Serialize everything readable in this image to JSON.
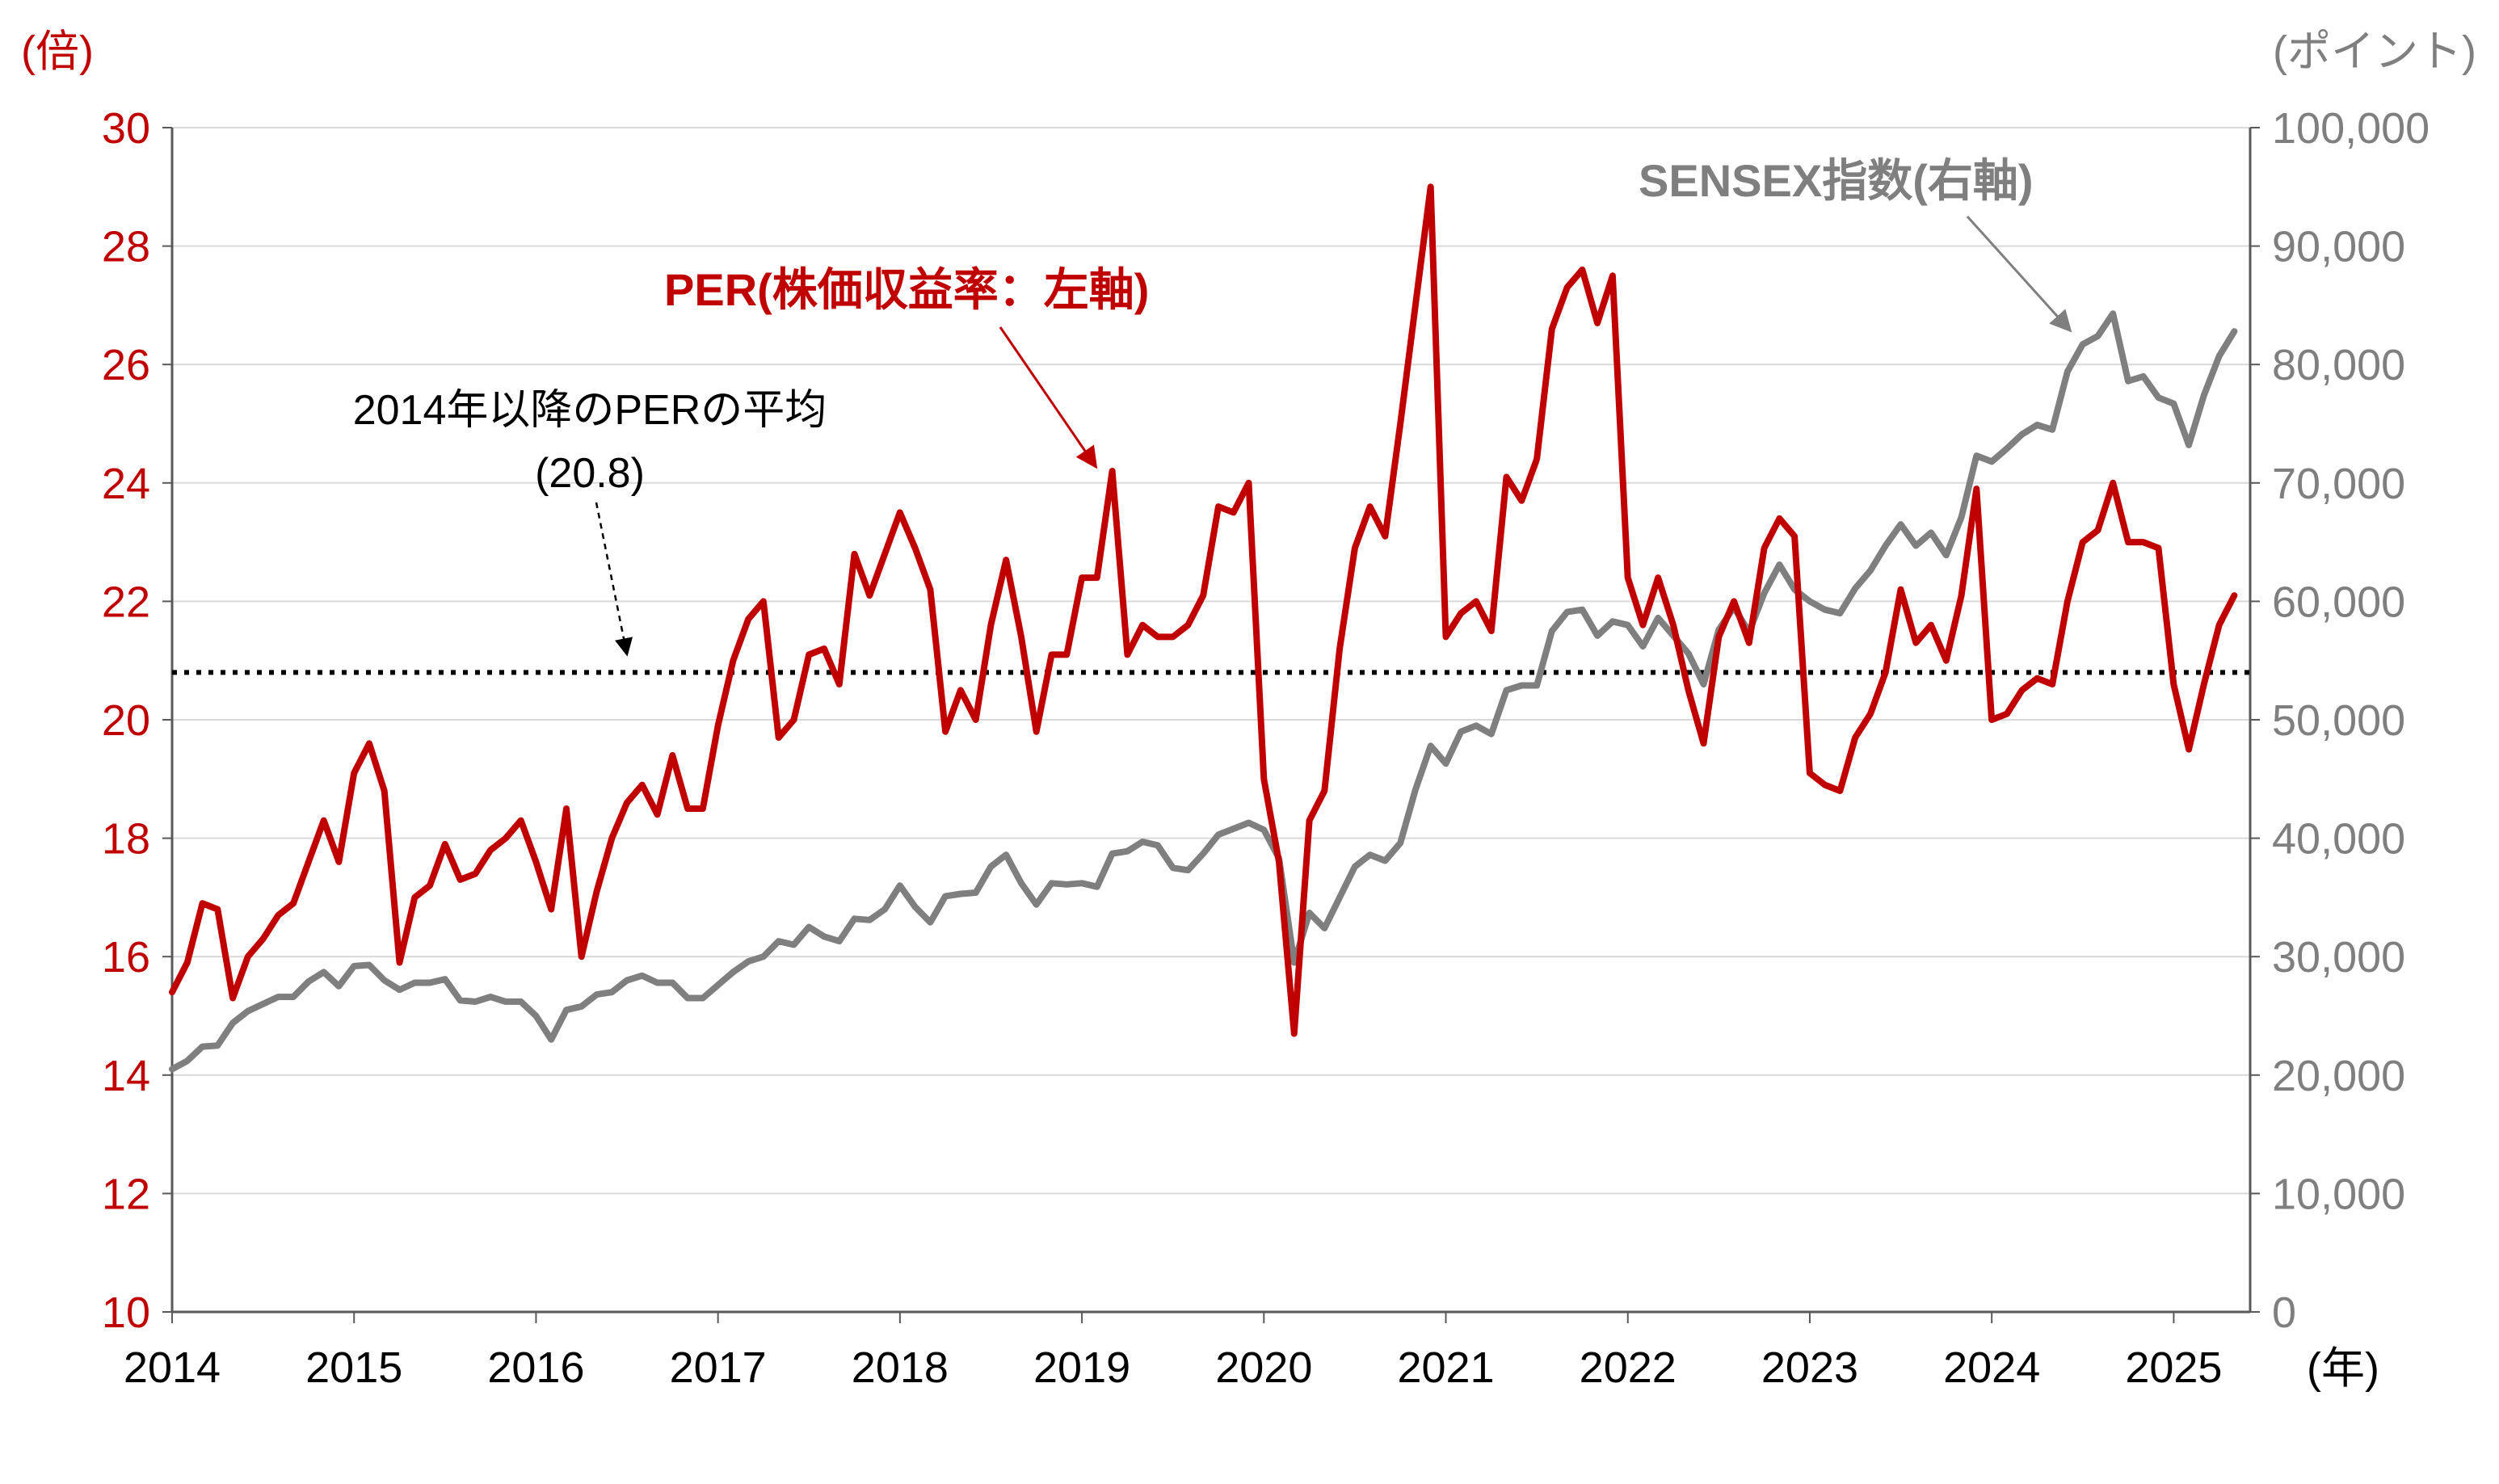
{
  "chart_data": {
    "type": "line",
    "title": "",
    "xlabel": "(年)",
    "ylabel_left": "(倍)",
    "ylabel_right": "(ポイント)",
    "ylim_left": [
      10,
      30
    ],
    "ylim_right": [
      0,
      100000
    ],
    "yticks_left": [
      "10",
      "12",
      "14",
      "16",
      "18",
      "20",
      "22",
      "24",
      "26",
      "28",
      "30"
    ],
    "yticks_right": [
      "0",
      "10,000",
      "20,000",
      "30,000",
      "40,000",
      "50,000",
      "60,000",
      "70,000",
      "80,000",
      "90,000",
      "100,000"
    ],
    "xticks": [
      "2014",
      "2015",
      "2016",
      "2017",
      "2018",
      "2019",
      "2020",
      "2021",
      "2022",
      "2023",
      "2024",
      "2025"
    ],
    "x_start": 2014.0,
    "x_end": 2025.42,
    "grid": "horizontal",
    "colors": {
      "per": "#c00000",
      "sensex": "#7f7f7f",
      "average": "#000000",
      "grid": "#d9d9d9"
    },
    "series": [
      {
        "name": "PER(株価収益率：左軸)",
        "axis": "left",
        "start": 2014.0,
        "step": 0.08333,
        "values": [
          15.4,
          15.9,
          16.9,
          16.8,
          15.3,
          16.0,
          16.3,
          16.7,
          16.9,
          17.6,
          18.3,
          17.6,
          19.1,
          19.6,
          18.8,
          15.9,
          17.0,
          17.2,
          17.9,
          17.3,
          17.4,
          17.8,
          18.0,
          18.3,
          17.6,
          16.8,
          18.5,
          16.0,
          17.1,
          18.0,
          18.6,
          18.9,
          18.4,
          19.4,
          18.5,
          18.5,
          19.9,
          21.0,
          21.7,
          22.0,
          19.7,
          20.0,
          21.1,
          21.2,
          20.6,
          22.8,
          22.1,
          22.8,
          23.5,
          22.9,
          22.2,
          19.8,
          20.5,
          20.0,
          21.6,
          22.7,
          21.4,
          19.8,
          21.1,
          21.1,
          22.4,
          22.4,
          24.2,
          21.1,
          21.6,
          21.4,
          21.4,
          21.6,
          22.1,
          23.6,
          23.5,
          24.0,
          19.0,
          17.6,
          14.7,
          18.3,
          18.8,
          21.2,
          22.9,
          23.6,
          23.1,
          25.0,
          27.0,
          29.0,
          21.4,
          21.8,
          22.0,
          21.5,
          24.1,
          23.7,
          24.4,
          26.6,
          27.3,
          27.6,
          26.7,
          27.5,
          22.4,
          21.6,
          22.4,
          21.6,
          20.5,
          19.6,
          21.4,
          22.0,
          21.3,
          22.9,
          23.4,
          23.1,
          19.1,
          18.9,
          18.8,
          19.7,
          20.1,
          20.8,
          22.2,
          21.3,
          21.6,
          21.0,
          22.1,
          23.9,
          20.0,
          20.1,
          20.5,
          20.7,
          20.6,
          22.0,
          23.0,
          23.2,
          24.0,
          23.0,
          23.0,
          22.9,
          20.6,
          19.5,
          20.6,
          21.6,
          22.1
        ]
      },
      {
        "name": "SENSEX指数(右軸)",
        "axis": "right",
        "start": 2014.0,
        "step": 0.08333,
        "values": [
          20500,
          21200,
          22400,
          22500,
          24400,
          25400,
          26000,
          26600,
          26600,
          27900,
          28700,
          27500,
          29200,
          29300,
          28000,
          27200,
          27800,
          27800,
          28100,
          26300,
          26200,
          26600,
          26200,
          26200,
          25000,
          23000,
          25500,
          25800,
          26800,
          27000,
          28000,
          28400,
          27800,
          27800,
          26500,
          26500,
          27600,
          28700,
          29600,
          30000,
          31300,
          31000,
          32500,
          31700,
          31300,
          33200,
          33100,
          34000,
          36000,
          34200,
          32900,
          35100,
          35300,
          35400,
          37600,
          38600,
          36200,
          34400,
          36200,
          36100,
          36200,
          35900,
          38700,
          38900,
          39700,
          39400,
          37500,
          37300,
          38700,
          40300,
          40800,
          41300,
          40700,
          38300,
          29500,
          33700,
          32400,
          35000,
          37600,
          38600,
          38100,
          39600,
          44100,
          47800,
          46300,
          49000,
          49500,
          48800,
          52500,
          52900,
          52900,
          57500,
          59100,
          59300,
          57100,
          58300,
          58000,
          56200,
          58600,
          57100,
          55600,
          53000,
          57600,
          59500,
          57400,
          60700,
          63100,
          61000,
          60000,
          59300,
          59000,
          61100,
          62600,
          64700,
          66500,
          64700,
          65800,
          63900,
          67100,
          72300,
          71800,
          72900,
          74100,
          74900,
          74500,
          79400,
          81700,
          82400,
          84300,
          78600,
          79000,
          77200,
          76700,
          73200,
          77400,
          80700,
          82800
        ]
      },
      {
        "name": "2014年以降のPERの平均",
        "axis": "left",
        "style": "dotted",
        "value": 20.8
      }
    ],
    "annotations": [
      {
        "id": "per",
        "text": "PER(株価収益率：左軸)",
        "arrow_to_x": 2019.1,
        "arrow_to_y_left": 24.2
      },
      {
        "id": "sensex",
        "text": "SENSEX指数(右軸)",
        "arrow_to_x": 2024.45,
        "arrow_to_y_right": 82300
      },
      {
        "id": "avg",
        "line1": "2014年以降のPERの平均",
        "line2": "(20.8)",
        "arrow_to_x": 2016.5,
        "arrow_to_y_left": 21.1
      }
    ]
  }
}
